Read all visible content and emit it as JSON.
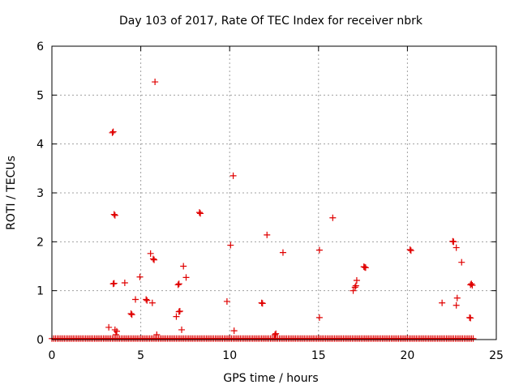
{
  "chart_data": {
    "type": "scatter",
    "title": "Day 103 of 2017, Rate Of TEC Index for receiver nbrk",
    "xlabel": "GPS time / hours",
    "ylabel": "ROTI / TECUs",
    "xlim": [
      0,
      25
    ],
    "ylim": [
      0,
      6
    ],
    "xticks": [
      "0",
      "5",
      "10",
      "15",
      "20",
      "25"
    ],
    "yticks": [
      "0",
      "1",
      "2",
      "3",
      "4",
      "5",
      "6"
    ],
    "grid": true,
    "marker": "+",
    "marker_color": "#e00000",
    "baseline": {
      "x_start": 0.0,
      "x_end": 23.7,
      "y": 0.02,
      "step": 0.1
    },
    "points": [
      {
        "x": 3.4,
        "y": 4.23
      },
      {
        "x": 3.45,
        "y": 4.25
      },
      {
        "x": 5.8,
        "y": 5.27
      },
      {
        "x": 3.5,
        "y": 2.56
      },
      {
        "x": 3.55,
        "y": 2.54
      },
      {
        "x": 8.3,
        "y": 2.6
      },
      {
        "x": 8.35,
        "y": 2.58
      },
      {
        "x": 10.2,
        "y": 3.35
      },
      {
        "x": 10.05,
        "y": 1.93
      },
      {
        "x": 12.1,
        "y": 2.14
      },
      {
        "x": 15.8,
        "y": 2.49
      },
      {
        "x": 3.45,
        "y": 1.14
      },
      {
        "x": 3.5,
        "y": 1.15
      },
      {
        "x": 4.1,
        "y": 1.16
      },
      {
        "x": 4.95,
        "y": 1.28
      },
      {
        "x": 4.7,
        "y": 0.82
      },
      {
        "x": 5.3,
        "y": 0.82
      },
      {
        "x": 5.35,
        "y": 0.8
      },
      {
        "x": 5.55,
        "y": 1.76
      },
      {
        "x": 5.7,
        "y": 1.65
      },
      {
        "x": 5.75,
        "y": 1.63
      },
      {
        "x": 5.65,
        "y": 0.75
      },
      {
        "x": 4.45,
        "y": 0.53
      },
      {
        "x": 4.5,
        "y": 0.51
      },
      {
        "x": 3.2,
        "y": 0.25
      },
      {
        "x": 3.55,
        "y": 0.2
      },
      {
        "x": 3.65,
        "y": 0.17
      },
      {
        "x": 3.6,
        "y": 0.1
      },
      {
        "x": 5.9,
        "y": 0.1
      },
      {
        "x": 7.1,
        "y": 1.12
      },
      {
        "x": 7.15,
        "y": 1.14
      },
      {
        "x": 7.4,
        "y": 1.5
      },
      {
        "x": 7.55,
        "y": 1.27
      },
      {
        "x": 7.0,
        "y": 0.47
      },
      {
        "x": 7.15,
        "y": 0.57
      },
      {
        "x": 7.2,
        "y": 0.58
      },
      {
        "x": 7.3,
        "y": 0.2
      },
      {
        "x": 9.85,
        "y": 0.78
      },
      {
        "x": 10.25,
        "y": 0.18
      },
      {
        "x": 11.8,
        "y": 0.75
      },
      {
        "x": 11.85,
        "y": 0.74
      },
      {
        "x": 13.0,
        "y": 1.78
      },
      {
        "x": 12.55,
        "y": 0.1
      },
      {
        "x": 12.6,
        "y": 0.12
      },
      {
        "x": 15.05,
        "y": 1.83
      },
      {
        "x": 15.05,
        "y": 0.45
      },
      {
        "x": 16.95,
        "y": 1.0
      },
      {
        "x": 17.05,
        "y": 1.07
      },
      {
        "x": 17.1,
        "y": 1.1
      },
      {
        "x": 17.15,
        "y": 1.21
      },
      {
        "x": 17.55,
        "y": 1.49
      },
      {
        "x": 17.6,
        "y": 1.48
      },
      {
        "x": 17.65,
        "y": 1.47
      },
      {
        "x": 20.15,
        "y": 1.84
      },
      {
        "x": 20.2,
        "y": 1.82
      },
      {
        "x": 21.95,
        "y": 0.75
      },
      {
        "x": 22.55,
        "y": 2.01
      },
      {
        "x": 22.6,
        "y": 2.0
      },
      {
        "x": 22.75,
        "y": 1.88
      },
      {
        "x": 23.05,
        "y": 1.58
      },
      {
        "x": 22.8,
        "y": 0.85
      },
      {
        "x": 22.75,
        "y": 0.7
      },
      {
        "x": 23.55,
        "y": 1.12
      },
      {
        "x": 23.6,
        "y": 1.14
      },
      {
        "x": 23.65,
        "y": 1.11
      },
      {
        "x": 23.5,
        "y": 0.45
      },
      {
        "x": 23.55,
        "y": 0.44
      }
    ]
  }
}
